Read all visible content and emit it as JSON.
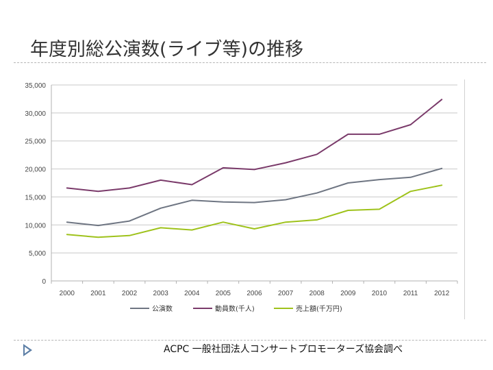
{
  "slide": {
    "title": "年度別総公演数(ライブ等)の推移",
    "source": "ACPC 一般社団法人コンサートプロモーターズ協会調べ"
  },
  "chart_data": {
    "type": "line",
    "title": "",
    "xlabel": "",
    "ylabel": "",
    "x": [
      "2000",
      "2001",
      "2002",
      "2003",
      "2004",
      "2005",
      "2006",
      "2007",
      "2008",
      "2009",
      "2010",
      "2011",
      "2012"
    ],
    "ylim": [
      0,
      35000
    ],
    "yticks": [
      0,
      5000,
      10000,
      15000,
      20000,
      25000,
      30000,
      35000
    ],
    "ytick_labels": [
      "0",
      "5,000",
      "10,000",
      "15,000",
      "20,000",
      "25,000",
      "30,000",
      "35,000"
    ],
    "grid": true,
    "legend_position": "bottom",
    "series": [
      {
        "name": "公演数",
        "color": "#6e7582",
        "values": [
          10500,
          9900,
          10700,
          13000,
          14400,
          14100,
          14000,
          14500,
          15700,
          17500,
          18100,
          18500,
          20100
        ]
      },
      {
        "name": "動員数(千人)",
        "color": "#7a3a6a",
        "values": [
          16600,
          16000,
          16600,
          18000,
          17200,
          20200,
          19900,
          21100,
          22600,
          26200,
          26200,
          27900,
          32400
        ]
      },
      {
        "name": "売上額(千万円)",
        "color": "#9ec21a",
        "values": [
          8300,
          7800,
          8100,
          9500,
          9100,
          10500,
          9300,
          10500,
          10900,
          12600,
          12800,
          16000,
          17100
        ]
      }
    ]
  }
}
